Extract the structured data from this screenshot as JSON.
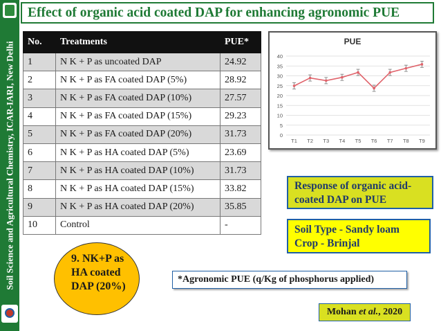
{
  "sidebar": {
    "text": "Soil Science and Agricultural Chemistry, ICAR-IARI, New Delhi"
  },
  "title": "Effect of organic acid coated DAP for enhancing agronomic PUE",
  "table": {
    "headers": [
      "No.",
      "Treatments",
      "PUE*"
    ],
    "rows": [
      {
        "no": "1",
        "treatment": "N K + P as uncoated DAP",
        "pue": "24.92"
      },
      {
        "no": "2",
        "treatment": "N K + P as FA coated DAP (5%)",
        "pue": "28.92"
      },
      {
        "no": "3",
        "treatment": "N K + P as FA coated DAP (10%)",
        "pue": "27.57"
      },
      {
        "no": "4",
        "treatment": "N K + P as FA coated DAP (15%)",
        "pue": "29.23"
      },
      {
        "no": "5",
        "treatment": "N K + P as FA coated DAP (20%)",
        "pue": "31.73"
      },
      {
        "no": "6",
        "treatment": "N K + P as HA coated DAP (5%)",
        "pue": "23.69"
      },
      {
        "no": "7",
        "treatment": "N K + P as HA coated DAP (10%)",
        "pue": "31.73"
      },
      {
        "no": "8",
        "treatment": "N K + P as HA coated DAP (15%)",
        "pue": "33.82"
      },
      {
        "no": "9",
        "treatment": "N K + P as HA coated DAP (20%)",
        "pue": "35.85"
      },
      {
        "no": "10",
        "treatment": "Control",
        "pue": "-"
      }
    ]
  },
  "chart_data": {
    "type": "line",
    "title": "PUE",
    "categories": [
      "T1",
      "T2",
      "T3",
      "T4",
      "T5",
      "T6",
      "T7",
      "T8",
      "T9"
    ],
    "values": [
      24.92,
      28.92,
      27.57,
      29.23,
      31.73,
      23.69,
      31.73,
      33.82,
      35.85
    ],
    "ylim": [
      0,
      40
    ],
    "yticks": [
      0,
      5,
      10,
      15,
      20,
      25,
      30,
      35,
      40
    ],
    "grid": true,
    "error_bars": true,
    "color": "#e0636b"
  },
  "response_box": {
    "line1": "Response of organic acid-",
    "line2": "coated DAP on PUE"
  },
  "soil_box": {
    "line1": "Soil Type - Sandy loam",
    "line2": "Crop - Brinjal"
  },
  "best": {
    "line1": "9. NK+P as",
    "line2": "HA coated",
    "line3": "DAP (20%)"
  },
  "footnote": "*Agronomic PUE (q/Kg of phosphorus applied)",
  "citation": {
    "author": "Mohan ",
    "etal": "et al.",
    "year": ", 2020"
  },
  "colors": {
    "green": "#1f7a35",
    "yellow_green": "#d9e021",
    "yellow": "#ffff00",
    "orange": "#ffc000",
    "line": "#e0636b"
  }
}
